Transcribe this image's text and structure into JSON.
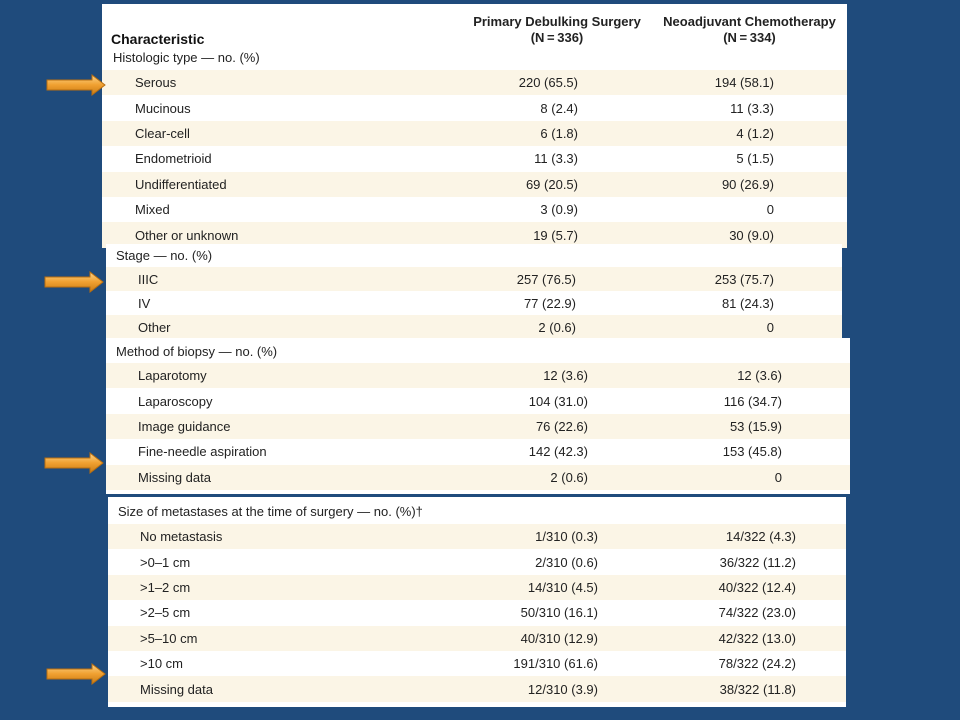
{
  "header": {
    "characteristic": "Characteristic",
    "col1_title": "Primary Debulking Surgery",
    "col1_n": "(N = 336)",
    "col2_title": "Neoadjuvant Chemotherapy",
    "col2_n": "(N = 334)"
  },
  "histology": {
    "title": "Histologic type — no. (%)",
    "rows": [
      {
        "label": "Serous",
        "pds": "220 (65.5)",
        "nact": "194 (58.1)"
      },
      {
        "label": "Mucinous",
        "pds": "8 (2.4)",
        "nact": "11 (3.3)"
      },
      {
        "label": "Clear-cell",
        "pds": "6 (1.8)",
        "nact": "4 (1.2)"
      },
      {
        "label": "Endometrioid",
        "pds": "11 (3.3)",
        "nact": "5 (1.5)"
      },
      {
        "label": "Undifferentiated",
        "pds": "69 (20.5)",
        "nact": "90 (26.9)"
      },
      {
        "label": "Mixed",
        "pds": "3 (0.9)",
        "nact": "0"
      },
      {
        "label": "Other or unknown",
        "pds": "19 (5.7)",
        "nact": "30 (9.0)"
      }
    ]
  },
  "stage": {
    "title": "Stage — no. (%)",
    "rows": [
      {
        "label": "IIIC",
        "pds": "257 (76.5)",
        "nact": "253 (75.7)"
      },
      {
        "label": "IV",
        "pds": "77 (22.9)",
        "nact": "81 (24.3)"
      },
      {
        "label": "Other",
        "pds": "2 (0.6)",
        "nact": "0"
      }
    ]
  },
  "biopsy": {
    "title": "Method of biopsy — no. (%)",
    "rows": [
      {
        "label": "Laparotomy",
        "pds": "12 (3.6)",
        "nact": "12 (3.6)"
      },
      {
        "label": "Laparoscopy",
        "pds": "104 (31.0)",
        "nact": "116 (34.7)"
      },
      {
        "label": "Image guidance",
        "pds": "76 (22.6)",
        "nact": "53 (15.9)"
      },
      {
        "label": "Fine-needle aspiration",
        "pds": "142 (42.3)",
        "nact": "153 (45.8)"
      },
      {
        "label": "Missing data",
        "pds": "2 (0.6)",
        "nact": "0"
      }
    ]
  },
  "metastases": {
    "title": "Size of metastases at the time of surgery — no. (%)†",
    "rows": [
      {
        "label": "No metastasis",
        "pds": "1/310 (0.3)",
        "nact": "14/322 (4.3)"
      },
      {
        "label": ">0–1 cm",
        "pds": "2/310 (0.6)",
        "nact": "36/322 (11.2)"
      },
      {
        "label": ">1–2 cm",
        "pds": "14/310 (4.5)",
        "nact": "40/322 (12.4)"
      },
      {
        "label": ">2–5 cm",
        "pds": "50/310 (16.1)",
        "nact": "74/322 (23.0)"
      },
      {
        "label": ">5–10 cm",
        "pds": "40/310 (12.9)",
        "nact": "42/322 (13.0)"
      },
      {
        "label": ">10 cm",
        "pds": "191/310 (61.6)",
        "nact": "78/322 (24.2)"
      },
      {
        "label": "Missing data",
        "pds": "12/310 (3.9)",
        "nact": "38/322 (11.8)"
      }
    ]
  },
  "colors": {
    "background": "#1f4b7c",
    "row_shade": "#fbf5e6",
    "arrow": "#f0a030"
  }
}
